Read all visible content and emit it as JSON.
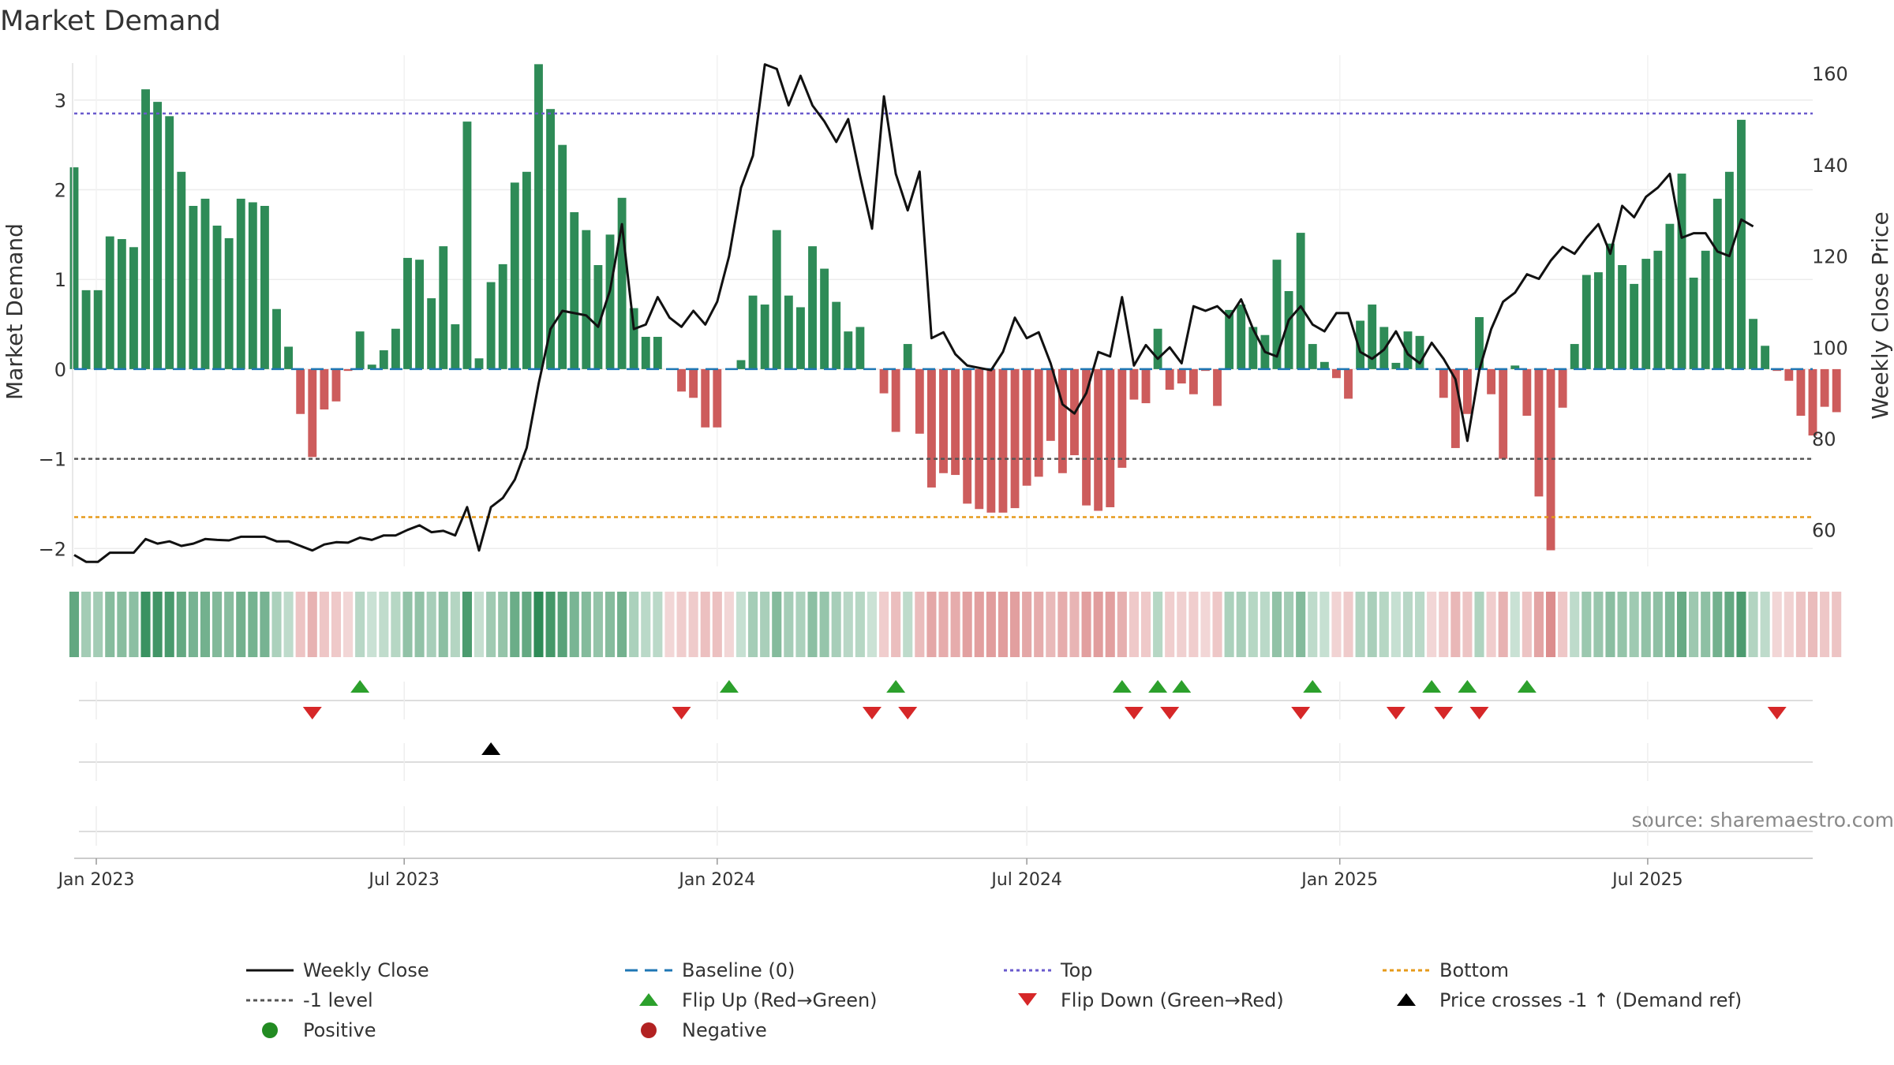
{
  "chart_data": {
    "type": "bar+line",
    "title": "Market Demand",
    "ylabel_left": "Market Demand",
    "ylabel_right": "Weekly Close Price",
    "source": "source: sharemaestro.com",
    "ylim_left": [
      -2.2,
      3.5
    ],
    "ylim_right": [
      52,
      164
    ],
    "yticks_left": [
      {
        "v": 3,
        "label": "3"
      },
      {
        "v": 2,
        "label": "2"
      },
      {
        "v": 1,
        "label": "1"
      },
      {
        "v": 0,
        "label": "0"
      },
      {
        "v": -1,
        "label": "−1"
      },
      {
        "v": -2,
        "label": "−2"
      }
    ],
    "yticks_right": [
      {
        "v": 160,
        "label": "160"
      },
      {
        "v": 140,
        "label": "140"
      },
      {
        "v": 120,
        "label": "120"
      },
      {
        "v": 100,
        "label": "100"
      },
      {
        "v": 80,
        "label": "80"
      },
      {
        "v": 60,
        "label": "60"
      }
    ],
    "x_start": "2022-12-19",
    "x_end": "2025-10-06",
    "xticks": [
      {
        "date": "2023-01-01",
        "label": "Jan 2023"
      },
      {
        "date": "2023-07-01",
        "label": "Jul 2023"
      },
      {
        "date": "2024-01-01",
        "label": "Jan 2024"
      },
      {
        "date": "2024-07-01",
        "label": "Jul 2024"
      },
      {
        "date": "2025-01-01",
        "label": "Jan 2025"
      },
      {
        "date": "2025-07-01",
        "label": "Jul 2025"
      }
    ],
    "levels": {
      "top": 2.85,
      "minus_one": -1.0,
      "bottom": -1.65,
      "baseline": 0
    },
    "weeks_start": "2022-12-19",
    "demand": [
      2.25,
      0.88,
      0.88,
      1.48,
      1.45,
      1.36,
      3.12,
      2.98,
      2.82,
      2.2,
      1.82,
      1.9,
      1.6,
      1.46,
      1.9,
      1.86,
      1.82,
      0.67,
      0.25,
      -0.5,
      -0.98,
      -0.45,
      -0.36,
      -0.02,
      0.42,
      0.05,
      0.21,
      0.45,
      1.24,
      1.22,
      0.79,
      1.37,
      0.5,
      2.76,
      0.12,
      0.97,
      1.17,
      2.08,
      2.2,
      3.4,
      2.9,
      2.5,
      1.75,
      1.55,
      1.16,
      1.5,
      1.91,
      0.68,
      0.36,
      0.36,
      -0.01,
      -0.25,
      -0.32,
      -0.65,
      -0.65,
      -0.01,
      0.1,
      0.82,
      0.72,
      1.55,
      0.82,
      0.69,
      1.37,
      1.12,
      0.75,
      0.42,
      0.47,
      0,
      -0.27,
      -0.7,
      0.28,
      -0.72,
      -1.32,
      -1.16,
      -1.18,
      -1.5,
      -1.56,
      -1.6,
      -1.6,
      -1.55,
      -1.3,
      -1.2,
      -0.8,
      -1.16,
      -0.96,
      -1.52,
      -1.58,
      -1.54,
      -1.1,
      -0.34,
      -0.38,
      0.45,
      -0.23,
      -0.16,
      -0.28,
      -0.02,
      -0.41,
      0.66,
      0.72,
      0.47,
      0.38,
      1.22,
      0.87,
      1.52,
      0.28,
      0.08,
      -0.1,
      -0.33,
      0.54,
      0.72,
      0.47,
      0.07,
      0.42,
      0.37,
      -0.01,
      -0.32,
      -0.88,
      -0.5,
      0.58,
      -0.28,
      -1.0,
      0.04,
      -0.52,
      -1.42,
      -2.02,
      -0.43,
      0.28,
      1.05,
      1.08,
      1.4,
      1.16,
      0.95,
      1.23,
      1.32,
      1.62,
      2.18,
      1.02,
      1.32,
      1.9,
      2.2,
      2.78,
      0.56,
      0.26,
      -0.02,
      -0.13,
      -0.52,
      -0.74,
      -0.42,
      -0.48
    ],
    "close": [
      54.5,
      53,
      53,
      55,
      55,
      55,
      58,
      57,
      57.5,
      56.5,
      57,
      58,
      57.8,
      57.7,
      58.5,
      58.5,
      58.5,
      57.5,
      57.5,
      56.5,
      55.5,
      56.8,
      57.3,
      57.2,
      58.3,
      57.8,
      58.8,
      58.8,
      60,
      61,
      59.5,
      59.8,
      58.8,
      65,
      55.5,
      65,
      67,
      71,
      78,
      92,
      104,
      108,
      107.5,
      107,
      104.5,
      112.5,
      127,
      104,
      105,
      111,
      106.5,
      104.5,
      108,
      105,
      110,
      120,
      135,
      142,
      162,
      161,
      153,
      159.5,
      153,
      149.5,
      145,
      150,
      137.5,
      126,
      155,
      138,
      130,
      138.5,
      102,
      103.3,
      98.5,
      96,
      95.5,
      95,
      99,
      106.5,
      102,
      103.3,
      96.5,
      87.5,
      85.5,
      90,
      99,
      98,
      111,
      96,
      100.5,
      97.5,
      100,
      96.5,
      109,
      108,
      109,
      106.5,
      110.5,
      104,
      99,
      98,
      106,
      109,
      105,
      103.5,
      107.5,
      107.5,
      99,
      97.5,
      99.5,
      103.5,
      98.5,
      96.5,
      101,
      97.5,
      93,
      79.5,
      95,
      104,
      110,
      112,
      116,
      115,
      119,
      122,
      120.5,
      124,
      127,
      120.5,
      131,
      128.5,
      133,
      135,
      138,
      124,
      125,
      125,
      121,
      120,
      128,
      126.5
    ],
    "flip_up_dates": [
      "2023-06-05",
      "2024-01-08",
      "2024-04-15",
      "2024-08-26",
      "2024-09-16",
      "2024-09-30",
      "2024-12-16",
      "2025-02-24",
      "2025-03-17",
      "2025-04-21"
    ],
    "flip_down_dates": [
      "2023-05-08",
      "2023-12-11",
      "2024-04-01",
      "2024-04-22",
      "2024-09-02",
      "2024-09-23",
      "2024-12-09",
      "2025-02-03",
      "2025-03-03",
      "2025-03-24",
      "2025-09-15"
    ],
    "price_cross_dates": [
      "2023-08-21"
    ],
    "legend": [
      {
        "label": "Weekly Close"
      },
      {
        "label": "Baseline (0)"
      },
      {
        "label": "Top"
      },
      {
        "label": "Bottom"
      },
      {
        "label": "-1 level"
      },
      {
        "label": "Flip Up (Red→Green)"
      },
      {
        "label": "Flip Down (Green→Red)"
      },
      {
        "label": "Price crosses -1 ↑ (Demand ref)"
      },
      {
        "label": "Positive"
      },
      {
        "label": "Negative"
      }
    ],
    "colors": {
      "positive_bar": "#2e8b57",
      "negative_bar": "#cd5c5c",
      "close_line": "#111111",
      "baseline": "#1f77b4",
      "top": "#6a5acd",
      "minus_one": "#555555",
      "bottom": "#e69a1a",
      "flip_up": "#2ca02c",
      "flip_down": "#d62728",
      "cross": "#000000",
      "positive_dot": "#228b22",
      "negative_dot": "#b22222"
    }
  }
}
